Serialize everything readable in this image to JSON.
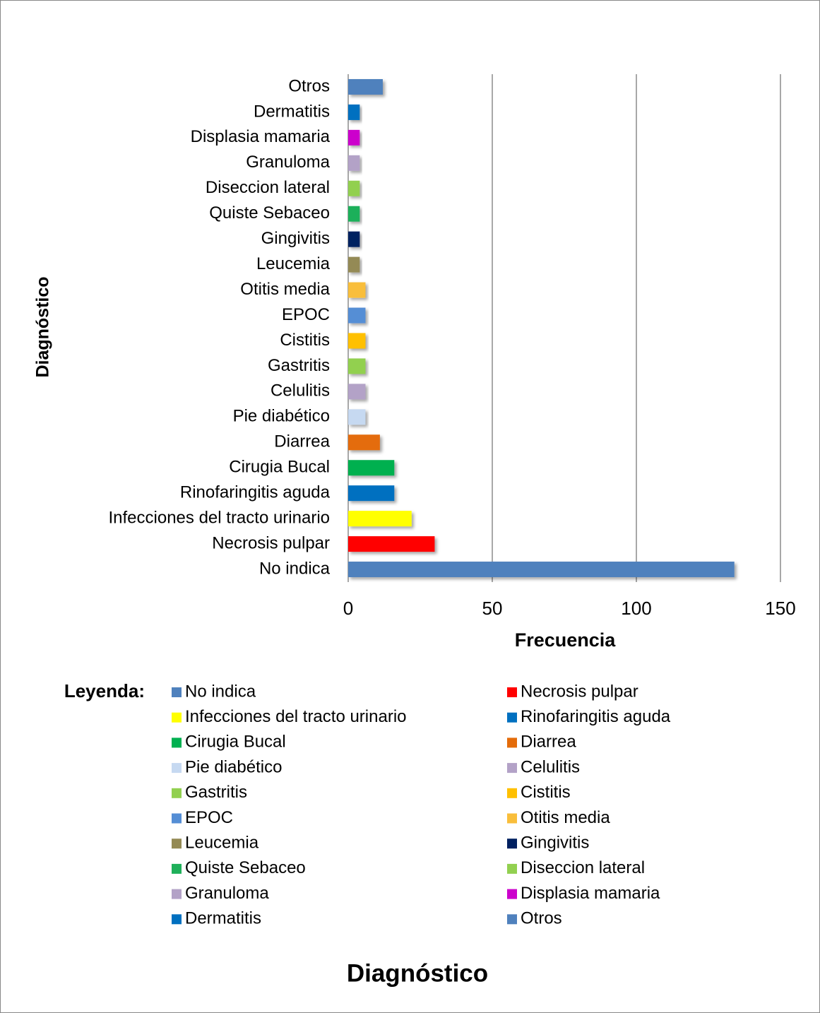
{
  "chart_data": {
    "type": "barh",
    "title": "Diagnóstico",
    "x_label": "Frecuencia",
    "y_label": "Diagnóstico",
    "legend_title": "Leyenda:",
    "categories": [
      "No indica",
      "Necrosis pulpar",
      "Infecciones del tracto urinario",
      "Rinofaringitis aguda",
      "Cirugia Bucal",
      "Diarrea",
      "Pie diabético",
      "Celulitis",
      "Gastritis",
      "Cistitis",
      "EPOC",
      "Otitis media",
      "Leucemia",
      "Gingivitis",
      "Quiste Sebaceo",
      "Diseccion lateral",
      "Granuloma",
      "Displasia mamaria",
      "Dermatitis",
      "Otros"
    ],
    "values": [
      134,
      30,
      22,
      16,
      16,
      11,
      6,
      6,
      6,
      6,
      6,
      6,
      4,
      4,
      4,
      4,
      4,
      4,
      4,
      12
    ],
    "colors": [
      "#4f81bd",
      "#ff0000",
      "#ffff00",
      "#0070c0",
      "#00b050",
      "#e46c0a",
      "#c6d9f1",
      "#b3a2c7",
      "#92d050",
      "#ffc000",
      "#558ed5",
      "#f9be3b",
      "#948a54",
      "#002060",
      "#1fb05a",
      "#92d050",
      "#b3a2c7",
      "#cc00cc",
      "#0070c0",
      "#4f81bd"
    ],
    "xlim": [
      0,
      150
    ],
    "xticks": [
      0,
      50,
      100,
      150
    ],
    "grid": true
  }
}
